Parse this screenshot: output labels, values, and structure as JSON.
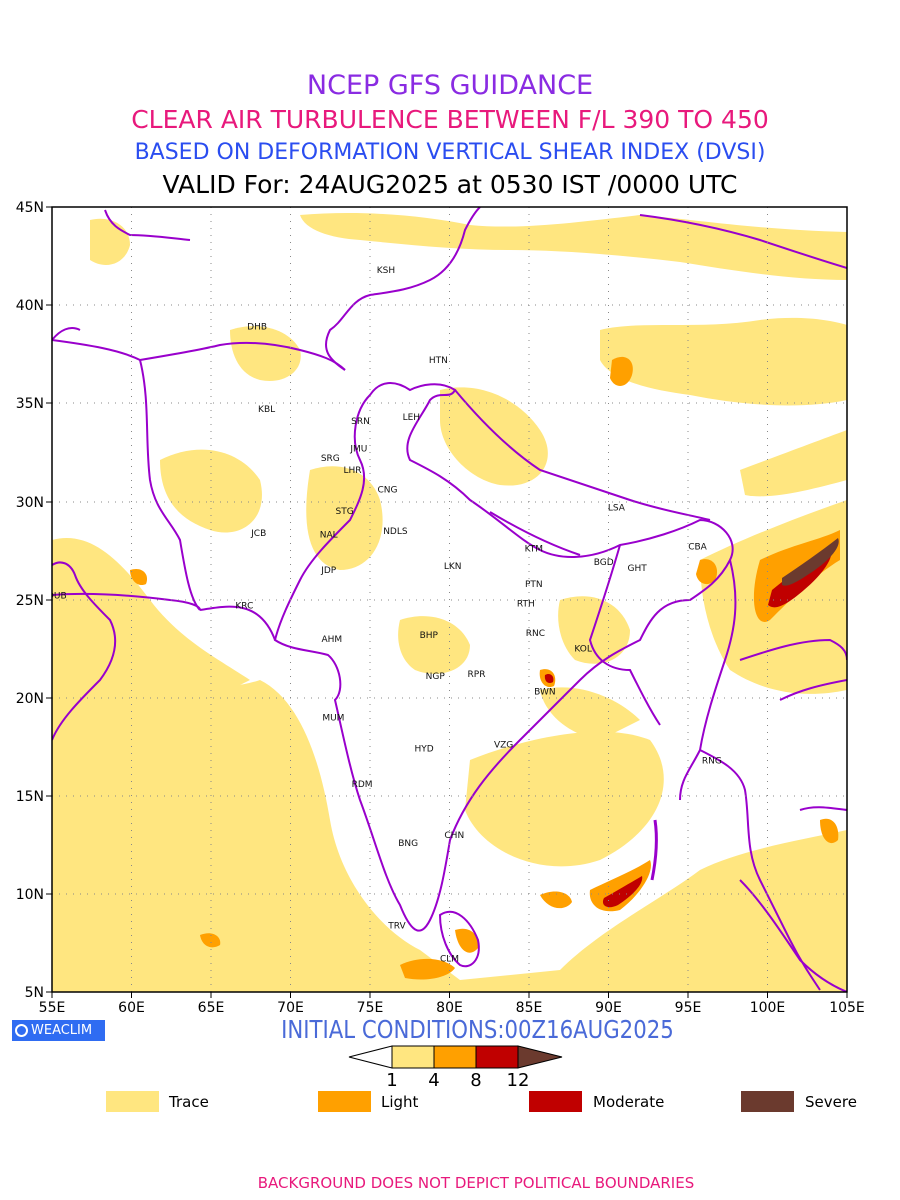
{
  "header": {
    "line1": "NCEP GFS GUIDANCE",
    "line2": "CLEAR AIR TURBULENCE BETWEEN F/L 390 TO 450",
    "line3": "BASED ON DEFORMATION VERTICAL SHEAR INDEX (DVSI)",
    "line4": "VALID For: 24AUG2025 at 0530 IST /0000 UTC"
  },
  "map": {
    "lon_ticks": [
      "55E",
      "60E",
      "65E",
      "70E",
      "75E",
      "80E",
      "85E",
      "90E",
      "95E",
      "100E",
      "105E"
    ],
    "lat_ticks": [
      "45N",
      "40N",
      "35N",
      "30N",
      "25N",
      "20N",
      "15N",
      "10N",
      "5N"
    ],
    "lon_range": [
      55,
      105
    ],
    "lat_range": [
      5,
      45
    ],
    "colors": {
      "trace": "#ffe680",
      "light": "#ffa000",
      "moderate": "#c00000",
      "severe": "#6b3a2e",
      "boundary": "#9900cc"
    },
    "stations": [
      {
        "code": "KSH",
        "lon": 76.0,
        "lat": 41.8
      },
      {
        "code": "DHB",
        "lon": 67.9,
        "lat": 38.9
      },
      {
        "code": "HTN",
        "lon": 79.3,
        "lat": 37.2
      },
      {
        "code": "KBL",
        "lon": 68.5,
        "lat": 34.7
      },
      {
        "code": "SRN",
        "lon": 74.4,
        "lat": 34.1
      },
      {
        "code": "LEH",
        "lon": 77.6,
        "lat": 34.3
      },
      {
        "code": "JMU",
        "lon": 74.3,
        "lat": 32.7
      },
      {
        "code": "SRG",
        "lon": 72.5,
        "lat": 32.2
      },
      {
        "code": "LHR",
        "lon": 73.9,
        "lat": 31.6
      },
      {
        "code": "CNG",
        "lon": 76.1,
        "lat": 30.6
      },
      {
        "code": "LSA",
        "lon": 90.5,
        "lat": 29.7
      },
      {
        "code": "STG",
        "lon": 73.4,
        "lat": 29.5
      },
      {
        "code": "JCB",
        "lon": 68.0,
        "lat": 28.4
      },
      {
        "code": "NAL",
        "lon": 72.4,
        "lat": 28.3
      },
      {
        "code": "NDLS",
        "lon": 76.6,
        "lat": 28.5
      },
      {
        "code": "KTM",
        "lon": 85.3,
        "lat": 27.6
      },
      {
        "code": "CBA",
        "lon": 95.6,
        "lat": 27.7
      },
      {
        "code": "BGD",
        "lon": 89.7,
        "lat": 26.9
      },
      {
        "code": "GHT",
        "lon": 91.8,
        "lat": 26.6
      },
      {
        "code": "LKN",
        "lon": 80.2,
        "lat": 26.7
      },
      {
        "code": "JDP",
        "lon": 72.4,
        "lat": 26.5
      },
      {
        "code": "PTN",
        "lon": 85.3,
        "lat": 25.8
      },
      {
        "code": "DUB",
        "lon": 55.3,
        "lat": 25.2
      },
      {
        "code": "KRC",
        "lon": 67.1,
        "lat": 24.7
      },
      {
        "code": "RTH",
        "lon": 84.8,
        "lat": 24.8
      },
      {
        "code": "AHM",
        "lon": 72.6,
        "lat": 23.0
      },
      {
        "code": "BHP",
        "lon": 78.7,
        "lat": 23.2
      },
      {
        "code": "RNC",
        "lon": 85.4,
        "lat": 23.3
      },
      {
        "code": "KOL",
        "lon": 88.4,
        "lat": 22.5
      },
      {
        "code": "NGP",
        "lon": 79.1,
        "lat": 21.1
      },
      {
        "code": "RPR",
        "lon": 81.7,
        "lat": 21.2
      },
      {
        "code": "BWN",
        "lon": 86.0,
        "lat": 20.3
      },
      {
        "code": "MUM",
        "lon": 72.7,
        "lat": 19.0
      },
      {
        "code": "HYD",
        "lon": 78.4,
        "lat": 17.4
      },
      {
        "code": "VZG",
        "lon": 83.4,
        "lat": 17.6
      },
      {
        "code": "RNG",
        "lon": 96.5,
        "lat": 16.8
      },
      {
        "code": "RDM",
        "lon": 74.5,
        "lat": 15.6
      },
      {
        "code": "CHN",
        "lon": 80.3,
        "lat": 13.0
      },
      {
        "code": "BNG",
        "lon": 77.4,
        "lat": 12.6
      },
      {
        "code": "TRV",
        "lon": 76.7,
        "lat": 8.4
      },
      {
        "code": "CLM",
        "lon": 80.0,
        "lat": 6.7
      }
    ]
  },
  "footer_block": {
    "logo_text": "WEACLIM",
    "initial_conditions": "INITIAL CONDITIONS:00Z16AUG2025",
    "colorbar_ticks": [
      "1",
      "4",
      "8",
      "12"
    ],
    "legend": [
      {
        "label": "Trace",
        "color": "#ffe680"
      },
      {
        "label": "Light",
        "color": "#ffa000"
      },
      {
        "label": "Moderate",
        "color": "#c00000"
      },
      {
        "label": "Severe",
        "color": "#6b3a2e"
      }
    ],
    "disclaimer": "BACKGROUND DOES NOT DEPICT POLITICAL BOUNDARIES"
  }
}
